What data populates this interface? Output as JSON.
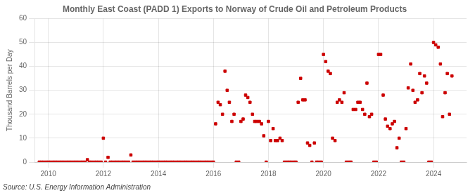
{
  "chart_data": {
    "type": "scatter",
    "title": "Monthly East Coast (PADD 1) Exports to Norway of Crude Oil and Petroleum Products",
    "y_label": "Thousand Barrels per Day",
    "annotation": "Source: U.S. Energy Information Administration",
    "color": "#cc0000",
    "marker": "square",
    "grid": true,
    "xlim": [
      2009.5,
      2025.2
    ],
    "ylim": [
      0,
      60
    ],
    "xticks": [
      2010,
      2012,
      2014,
      2016,
      2018,
      2020,
      2022,
      2024
    ],
    "yticks": [
      0,
      10,
      20,
      30,
      40,
      50,
      60
    ],
    "x": [
      2009.67,
      2009.75,
      2009.83,
      2009.92,
      2010.0,
      2010.08,
      2010.17,
      2010.25,
      2010.33,
      2010.42,
      2010.5,
      2010.58,
      2010.67,
      2010.75,
      2010.83,
      2010.92,
      2011.0,
      2011.08,
      2011.17,
      2011.25,
      2011.33,
      2011.42,
      2011.5,
      2011.58,
      2011.67,
      2011.75,
      2011.83,
      2011.92,
      2012.0,
      2012.08,
      2012.17,
      2012.25,
      2012.33,
      2012.42,
      2012.5,
      2012.58,
      2012.67,
      2012.75,
      2012.83,
      2012.92,
      2013.0,
      2013.08,
      2013.17,
      2013.25,
      2013.33,
      2013.42,
      2013.5,
      2013.58,
      2013.67,
      2013.75,
      2013.83,
      2013.92,
      2014.0,
      2014.08,
      2014.17,
      2014.25,
      2014.33,
      2014.42,
      2014.5,
      2014.58,
      2014.67,
      2014.75,
      2014.83,
      2014.92,
      2015.0,
      2015.08,
      2015.17,
      2015.25,
      2015.33,
      2015.42,
      2015.5,
      2015.58,
      2015.67,
      2015.75,
      2015.83,
      2015.92,
      2016.0,
      2016.08,
      2016.17,
      2016.25,
      2016.33,
      2016.42,
      2016.5,
      2016.58,
      2016.67,
      2016.75,
      2016.83,
      2016.92,
      2017.0,
      2017.08,
      2017.17,
      2017.25,
      2017.33,
      2017.42,
      2017.5,
      2017.58,
      2017.67,
      2017.75,
      2017.83,
      2017.92,
      2018.0,
      2018.08,
      2018.17,
      2018.25,
      2018.33,
      2018.42,
      2018.5,
      2018.58,
      2018.67,
      2018.75,
      2018.83,
      2018.92,
      2019.0,
      2019.08,
      2019.17,
      2019.25,
      2019.33,
      2019.42,
      2019.5,
      2019.58,
      2019.67,
      2019.75,
      2019.83,
      2019.92,
      2020.0,
      2020.08,
      2020.17,
      2020.25,
      2020.33,
      2020.42,
      2020.5,
      2020.58,
      2020.67,
      2020.75,
      2020.83,
      2020.92,
      2021.0,
      2021.08,
      2021.17,
      2021.25,
      2021.33,
      2021.42,
      2021.5,
      2021.58,
      2021.67,
      2021.75,
      2021.83,
      2021.92,
      2022.0,
      2022.08,
      2022.17,
      2022.25,
      2022.33,
      2022.42,
      2022.5,
      2022.58,
      2022.67,
      2022.75,
      2022.83,
      2022.92,
      2023.0,
      2023.08,
      2023.17,
      2023.25,
      2023.33,
      2023.42,
      2023.5,
      2023.58,
      2023.67,
      2023.75,
      2023.83,
      2023.92,
      2024.0,
      2024.08,
      2024.17,
      2024.25,
      2024.33,
      2024.42,
      2024.5,
      2024.58,
      2024.67
    ],
    "values": [
      0,
      0,
      0,
      0,
      0,
      0,
      0,
      0,
      0,
      0,
      0,
      0,
      0,
      0,
      0,
      0,
      0,
      0,
      0,
      0,
      0,
      1,
      0,
      0,
      0,
      0,
      0,
      0,
      10,
      0,
      2,
      0,
      0,
      0,
      0,
      0,
      0,
      0,
      0,
      0,
      3,
      0,
      0,
      0,
      0,
      0,
      0,
      0,
      0,
      0,
      0,
      0,
      0,
      0,
      0,
      0,
      0,
      0,
      0,
      0,
      0,
      0,
      0,
      0,
      0,
      0,
      0,
      0,
      0,
      0,
      0,
      0,
      0,
      0,
      0,
      0,
      0,
      16,
      25,
      24,
      20,
      38,
      30,
      25,
      17,
      20,
      0,
      0,
      17,
      18,
      28,
      27,
      25,
      20,
      17,
      17,
      17,
      16,
      11,
      0,
      17,
      9,
      14,
      9,
      9,
      10,
      9,
      0,
      0,
      0,
      0,
      0,
      0,
      25,
      35,
      26,
      26,
      8,
      7,
      0,
      8,
      0,
      0,
      0,
      45,
      42,
      38,
      37,
      10,
      9,
      25,
      26,
      25,
      29,
      0,
      0,
      0,
      22,
      22,
      25,
      25,
      22,
      20,
      33,
      19,
      20,
      0,
      0,
      45,
      45,
      28,
      18,
      15,
      14,
      16,
      17,
      6,
      10,
      0,
      0,
      14,
      31,
      41,
      30,
      25,
      26,
      37,
      29,
      36,
      33,
      0,
      0,
      50,
      49,
      48,
      41,
      19,
      29,
      37,
      20,
      36
    ]
  }
}
